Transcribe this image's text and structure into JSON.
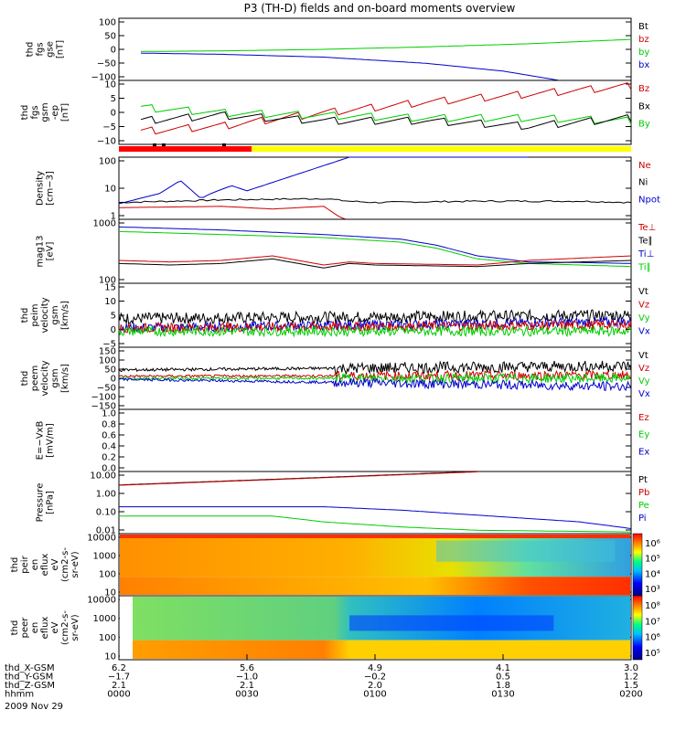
{
  "title": "P3 (TH-D) fields and on-board moments overview",
  "date_label": "2009 Nov 29",
  "colors": {
    "black": "#000000",
    "red": "#cc0000",
    "green": "#00cc00",
    "blue": "#0000cc",
    "mode_red": "#ff0000",
    "mode_yellow": "#ffff00"
  },
  "chart_data": [
    {
      "type": "line",
      "id": "p1",
      "ylabel": [
        "thd",
        "fgs",
        "gse",
        "[nT]"
      ],
      "yticks": [
        "100",
        "50",
        "0",
        "−50",
        "−100"
      ],
      "ylim": [
        -100,
        100
      ],
      "legend": [
        {
          "name": "Bt",
          "color": "black"
        },
        {
          "name": "bz",
          "color": "red"
        },
        {
          "name": "by",
          "color": "green"
        },
        {
          "name": "bx",
          "color": "blue"
        }
      ],
      "series": [
        {
          "name": "by",
          "color": "green",
          "x": [
            0.04,
            0.2,
            0.4,
            0.6,
            0.8,
            1.0
          ],
          "y": [
            -7,
            -5,
            0,
            8,
            18,
            32
          ]
        },
        {
          "name": "bx",
          "color": "blue",
          "x": [
            0.04,
            0.2,
            0.4,
            0.6,
            0.75,
            0.86
          ],
          "y": [
            -12,
            -16,
            -25,
            -45,
            -70,
            -100
          ]
        }
      ]
    },
    {
      "type": "line",
      "id": "p2",
      "ylabel": [
        "thd",
        "fgs",
        "gsm",
        "-ep",
        "[nT]"
      ],
      "yticks": [
        "10",
        "5",
        "0",
        "−5",
        "−10"
      ],
      "ylim": [
        -12,
        12
      ],
      "legend": [
        {
          "name": "Bz",
          "color": "red"
        },
        {
          "name": "Bx",
          "color": "black"
        },
        {
          "name": "By",
          "color": "green"
        }
      ],
      "series": [
        {
          "name": "Bz",
          "color": "red",
          "x": [
            0.04,
            0.2,
            0.4,
            0.6,
            0.8,
            1.0
          ],
          "y": [
            -7,
            -5,
            0,
            4,
            7,
            10
          ]
        },
        {
          "name": "By",
          "color": "green",
          "x": [
            0.04,
            0.2,
            0.4,
            0.6,
            0.8,
            1.0
          ],
          "y": [
            2,
            0,
            -1,
            -2,
            -2,
            -3
          ]
        },
        {
          "name": "Bx",
          "color": "black",
          "x": [
            0.04,
            0.2,
            0.4,
            0.6,
            0.8,
            1.0
          ],
          "y": [
            -3,
            -1,
            -3,
            -3,
            -5,
            -2
          ]
        }
      ]
    },
    {
      "type": "line",
      "id": "p3",
      "ylabel": [
        "Density",
        "[cm−3]"
      ],
      "yticks": [
        "100",
        "10",
        "1"
      ],
      "ylim": [
        -0.2,
        2.2
      ],
      "log": true,
      "legend": [
        {
          "name": "Ne",
          "color": "red"
        },
        {
          "name": "Ni",
          "color": "black"
        },
        {
          "name": "Npot",
          "color": "blue"
        }
      ],
      "series": [
        {
          "name": "Npot",
          "color": "blue",
          "x": [
            0,
            0.08,
            0.12,
            0.16,
            0.18,
            0.22,
            0.25,
            0.45,
            0.8
          ],
          "y": [
            0.4,
            0.8,
            1.3,
            0.6,
            0.8,
            1.1,
            0.9,
            2.2,
            2.2
          ]
        },
        {
          "name": "Ni",
          "color": "black",
          "x": [
            0,
            0.2,
            0.4,
            0.45,
            0.5,
            0.7,
            0.9,
            1.0
          ],
          "y": [
            0.45,
            0.55,
            0.6,
            0.5,
            0.45,
            0.5,
            0.5,
            0.45
          ]
        },
        {
          "name": "Ne",
          "color": "red",
          "x": [
            0,
            0.2,
            0.3,
            0.4,
            0.43,
            0.46,
            0.5,
            0.7,
            1.0
          ],
          "y": [
            0.25,
            0.3,
            0.2,
            0.3,
            -0.1,
            -0.35,
            -0.45,
            -0.45,
            -0.4
          ]
        }
      ]
    },
    {
      "type": "line",
      "id": "p4",
      "ylabel": [
        "mag13",
        "[eV]"
      ],
      "yticks": [
        "1000",
        "100"
      ],
      "ylim": [
        1.2,
        3.3
      ],
      "log": true,
      "legend": [
        {
          "name": "Te⊥",
          "color": "red"
        },
        {
          "name": "Te∥",
          "color": "black"
        },
        {
          "name": "Ti⊥",
          "color": "blue"
        },
        {
          "name": "Ti∥",
          "color": "green"
        }
      ],
      "series": [
        {
          "name": "Ti⊥",
          "color": "blue",
          "x": [
            0,
            0.2,
            0.4,
            0.55,
            0.62,
            0.7,
            0.8,
            0.9,
            1.0
          ],
          "y": [
            3.05,
            2.95,
            2.8,
            2.65,
            2.45,
            2.1,
            1.9,
            1.88,
            1.85
          ]
        },
        {
          "name": "Ti∥",
          "color": "green",
          "x": [
            0,
            0.2,
            0.4,
            0.55,
            0.62,
            0.7,
            0.8,
            0.9,
            1.0
          ],
          "y": [
            2.9,
            2.8,
            2.7,
            2.55,
            2.35,
            2.0,
            1.85,
            1.8,
            1.75
          ]
        },
        {
          "name": "Te⊥",
          "color": "red",
          "x": [
            0,
            0.1,
            0.2,
            0.3,
            0.4,
            0.45,
            0.5,
            0.7,
            0.8,
            1.0
          ],
          "y": [
            1.95,
            1.9,
            1.95,
            2.1,
            1.8,
            1.9,
            1.85,
            1.8,
            1.95,
            2.1
          ]
        },
        {
          "name": "Te∥",
          "color": "black",
          "x": [
            0,
            0.1,
            0.2,
            0.3,
            0.4,
            0.45,
            0.5,
            0.7,
            0.8,
            1.0
          ],
          "y": [
            1.85,
            1.8,
            1.85,
            2.0,
            1.7,
            1.85,
            1.8,
            1.75,
            1.85,
            1.95
          ]
        }
      ]
    },
    {
      "type": "line",
      "id": "p5",
      "ylabel": [
        "thd",
        "peim",
        "velocity",
        "gsm",
        "[km/s]"
      ],
      "yticks": [
        "15",
        "10",
        "5",
        "0",
        "−5"
      ],
      "ylim": [
        -5,
        15
      ],
      "legend": [
        {
          "name": "Vt",
          "color": "black"
        },
        {
          "name": "Vz",
          "color": "red"
        },
        {
          "name": "Vy",
          "color": "green"
        },
        {
          "name": "Vx",
          "color": "blue"
        }
      ],
      "series": [
        {
          "name": "Vt",
          "color": "black",
          "x": [
            0,
            1
          ],
          "y": [
            4,
            5
          ]
        },
        {
          "name": "Vx",
          "color": "blue",
          "x": [
            0,
            1
          ],
          "y": [
            1,
            3
          ]
        },
        {
          "name": "Vz",
          "color": "red",
          "x": [
            0,
            1
          ],
          "y": [
            1,
            2
          ]
        },
        {
          "name": "Vy",
          "color": "green",
          "x": [
            0,
            1
          ],
          "y": [
            0,
            0
          ]
        }
      ]
    },
    {
      "type": "line",
      "id": "p6",
      "ylabel": [
        "thd",
        "peem",
        "velocity",
        "gsm",
        "[km/s]"
      ],
      "yticks": [
        "150",
        "100",
        "50",
        "0",
        "−50",
        "−100",
        "−150"
      ],
      "ylim": [
        -150,
        150
      ],
      "legend": [
        {
          "name": "Vt",
          "color": "black"
        },
        {
          "name": "Vz",
          "color": "red"
        },
        {
          "name": "Vy",
          "color": "green"
        },
        {
          "name": "Vx",
          "color": "blue"
        }
      ],
      "series": [
        {
          "name": "Vt",
          "color": "black",
          "x": [
            0,
            1
          ],
          "y": [
            40,
            60
          ]
        },
        {
          "name": "Vz",
          "color": "red",
          "x": [
            0,
            1
          ],
          "y": [
            10,
            15
          ]
        },
        {
          "name": "Vy",
          "color": "green",
          "x": [
            0,
            1
          ],
          "y": [
            0,
            0
          ]
        },
        {
          "name": "Vx",
          "color": "blue",
          "x": [
            0,
            1
          ],
          "y": [
            -5,
            -40
          ]
        }
      ]
    },
    {
      "type": "line",
      "id": "p7",
      "ylabel": [
        "E=−VxB",
        "[mV/m]"
      ],
      "yticks": [
        "1.0",
        "0.8",
        "0.6",
        "0.4",
        "0.2",
        "0.0"
      ],
      "ylim": [
        0,
        1
      ],
      "legend": [
        {
          "name": "Ez",
          "color": "red"
        },
        {
          "name": "Ey",
          "color": "green"
        },
        {
          "name": "Ex",
          "color": "blue"
        }
      ],
      "series": []
    },
    {
      "type": "line",
      "id": "p8",
      "ylabel": [
        "Pressure",
        "[nPa]"
      ],
      "yticks": [
        "10.00",
        "1.00",
        "0.10",
        "0.01"
      ],
      "ylim": [
        -2.2,
        1.5
      ],
      "log": true,
      "legend": [
        {
          "name": "Pt",
          "color": "black"
        },
        {
          "name": "Pb",
          "color": "red"
        },
        {
          "name": "Pe",
          "color": "green"
        },
        {
          "name": "Pi",
          "color": "blue"
        }
      ],
      "series": [
        {
          "name": "Pt",
          "color": "black",
          "x": [
            0,
            0.4,
            0.7
          ],
          "y": [
            0.7,
            1.15,
            1.5
          ]
        },
        {
          "name": "Pb",
          "color": "red",
          "x": [
            0,
            0.4,
            0.7
          ],
          "y": [
            0.68,
            1.13,
            1.48
          ]
        },
        {
          "name": "Pi",
          "color": "blue",
          "x": [
            0,
            0.4,
            0.55,
            0.7,
            0.9,
            1.0
          ],
          "y": [
            -0.6,
            -0.6,
            -0.8,
            -1.1,
            -1.5,
            -1.9
          ]
        },
        {
          "name": "Pe",
          "color": "green",
          "x": [
            0,
            0.3,
            0.4,
            0.55,
            0.7,
            1.0
          ],
          "y": [
            -1.15,
            -1.15,
            -1.5,
            -1.8,
            -2.0,
            -2.1
          ]
        }
      ]
    },
    {
      "type": "heatmap",
      "id": "p9",
      "ylabel": [
        "thd",
        "peir",
        "en",
        "eflux",
        "eV",
        "(cm2-s-",
        "sr-eV)"
      ],
      "yticks": [
        "10000",
        "1000",
        "100",
        "10"
      ],
      "colorbar": [
        "10⁶",
        "10⁵",
        "10⁴",
        "10³"
      ]
    },
    {
      "type": "heatmap",
      "id": "p10",
      "ylabel": [
        "thd",
        "peer",
        "en",
        "eflux",
        "eV",
        "(cm2-s-",
        "sr-eV)"
      ],
      "yticks": [
        "10000",
        "1000",
        "100",
        "10"
      ],
      "colorbar": [
        "10⁸",
        "10⁷",
        "10⁶",
        "10⁵"
      ]
    }
  ],
  "xaxis": {
    "rows": [
      {
        "label": "thd_X-GSM",
        "values": [
          "6.2",
          "5.6",
          "4.9",
          "4.1",
          "3.0"
        ]
      },
      {
        "label": "thd_Y-GSM",
        "values": [
          "−1.7",
          "−1.0",
          "−0.2",
          "0.5",
          "1.2"
        ]
      },
      {
        "label": "thd_Z-GSM",
        "values": [
          "2.1",
          "2.1",
          "2.0",
          "1.8",
          "1.5"
        ]
      },
      {
        "label": "hhmm",
        "values": [
          "0000",
          "0030",
          "0100",
          "0130",
          "0200"
        ]
      }
    ]
  }
}
